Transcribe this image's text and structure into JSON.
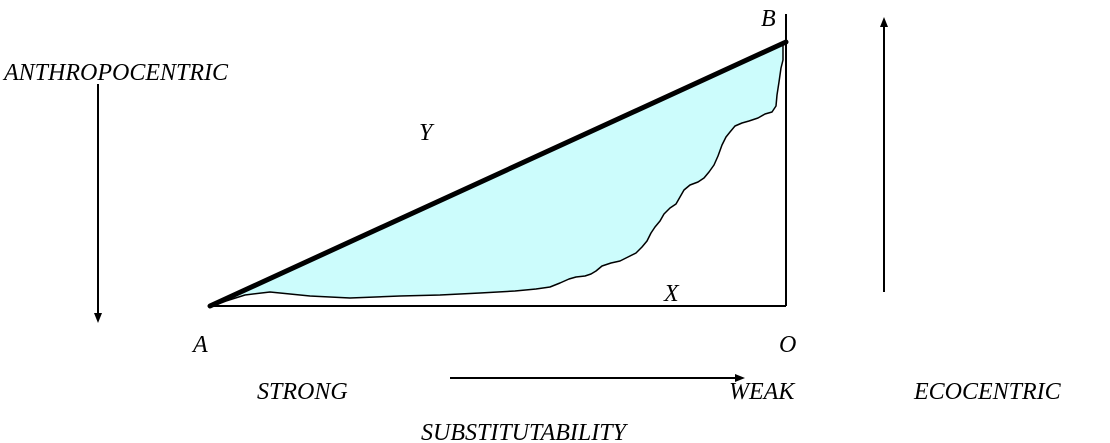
{
  "labels": {
    "anthropocentric": "ANTHROPOCENTRIC",
    "ecocentric": "ECOCENTRIC",
    "strong": "STRONG",
    "weak": "WEAK",
    "substitutability": "SUBSTITUTABILITY",
    "point_a": "A",
    "point_b": "B",
    "point_o": "O",
    "region_x": "X",
    "region_y": "Y"
  },
  "colors": {
    "line": "#000000",
    "shaded_region": "#ccfcfc",
    "background": "#ffffff"
  }
}
